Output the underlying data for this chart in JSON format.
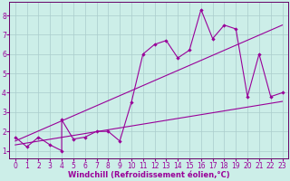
{
  "background_color": "#cceee8",
  "grid_color": "#aacccc",
  "line_color": "#990099",
  "spine_color": "#660066",
  "xlim": [
    -0.5,
    23.5
  ],
  "ylim": [
    0.6,
    8.7
  ],
  "xlabel": "Windchill (Refroidissement éolien,°C)",
  "xlabel_fontsize": 6.0,
  "xticks": [
    0,
    1,
    2,
    3,
    4,
    5,
    6,
    7,
    8,
    9,
    10,
    11,
    12,
    13,
    14,
    15,
    16,
    17,
    18,
    19,
    20,
    21,
    22,
    23
  ],
  "yticks": [
    1,
    2,
    3,
    4,
    5,
    6,
    7,
    8
  ],
  "scatter_x": [
    0,
    1,
    2,
    3,
    4,
    4,
    5,
    6,
    7,
    8,
    9,
    10,
    11,
    12,
    13,
    14,
    15,
    16,
    17,
    18,
    19,
    20,
    21,
    22,
    23
  ],
  "scatter_y": [
    1.7,
    1.2,
    1.7,
    1.3,
    1.0,
    2.6,
    1.6,
    1.7,
    2.0,
    2.0,
    1.5,
    3.5,
    6.0,
    6.5,
    6.7,
    5.8,
    6.2,
    8.3,
    6.8,
    7.5,
    7.3,
    3.8,
    6.0,
    3.8,
    4.0
  ],
  "reg_line1_x": [
    0,
    23
  ],
  "reg_line1_y": [
    1.3,
    3.55
  ],
  "reg_line2_x": [
    0,
    23
  ],
  "reg_line2_y": [
    1.5,
    7.5
  ],
  "tick_fontsize": 5.5,
  "marker_size": 2.2,
  "line_width": 0.8
}
